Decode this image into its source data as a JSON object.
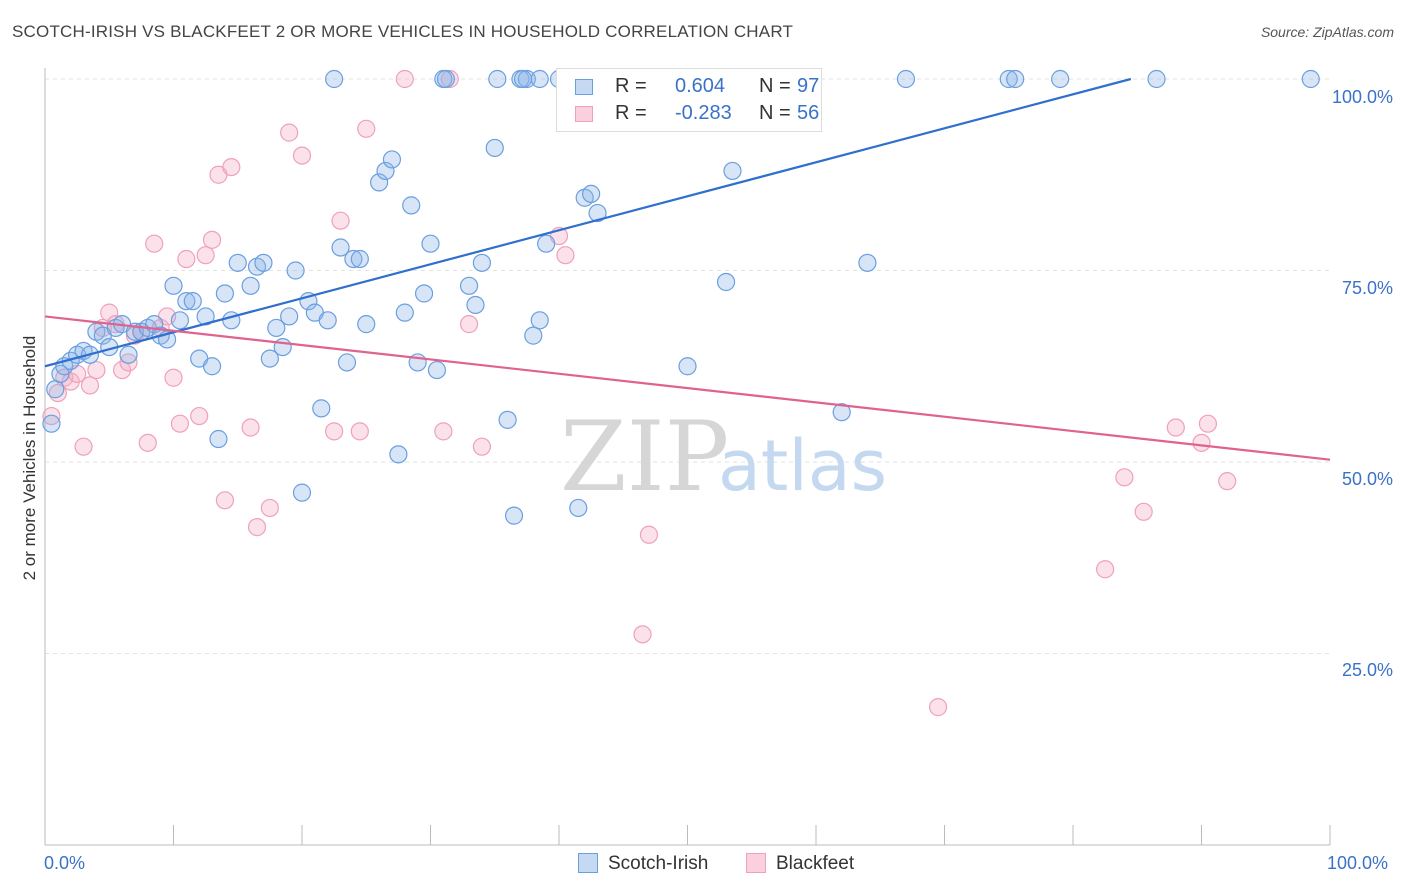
{
  "header": {
    "title": "SCOTCH-IRISH VS BLACKFEET 2 OR MORE VEHICLES IN HOUSEHOLD CORRELATION CHART",
    "source": "Source: ZipAtlas.com"
  },
  "watermark": {
    "zip": "ZIP",
    "atlas": "atlas"
  },
  "legend": {
    "series1": {
      "r_label": "R =",
      "r_value": "0.604",
      "n_label": "N =",
      "n_value": "97"
    },
    "series2": {
      "r_label": "R =",
      "r_value": "-0.283",
      "n_label": "N =",
      "n_value": "56"
    }
  },
  "chart_data": {
    "type": "scatter",
    "title": "SCOTCH-IRISH VS BLACKFEET 2 OR MORE VEHICLES IN HOUSEHOLD CORRELATION CHART",
    "xlabel": "",
    "ylabel": "2 or more Vehicles in Household",
    "xlim": [
      0,
      100
    ],
    "ylim": [
      0,
      100
    ],
    "x_tick_labels": [
      "0.0%",
      "100.0%"
    ],
    "y_ticks": [
      25,
      50,
      75,
      100
    ],
    "y_tick_labels": [
      "25.0%",
      "50.0%",
      "75.0%",
      "100.0%"
    ],
    "grid": true,
    "legend_position": "bottom",
    "colors": {
      "Scotch-Irish": "#6a9fe0",
      "Blackfeet": "#f0a0bb",
      "blue_line": "#2f6fcd",
      "pink_line": "#e0628e"
    },
    "series": [
      {
        "name": "Scotch-Irish",
        "trend": {
          "x": [
            0,
            84.5
          ],
          "y": [
            62.5,
            100
          ]
        },
        "points": [
          [
            0.5,
            55
          ],
          [
            0.8,
            59.5
          ],
          [
            1.2,
            61.5
          ],
          [
            1.5,
            62.5
          ],
          [
            2,
            63.2
          ],
          [
            2.5,
            64
          ],
          [
            3,
            64.5
          ],
          [
            3.5,
            64
          ],
          [
            4,
            67
          ],
          [
            4.5,
            66.5
          ],
          [
            5,
            65
          ],
          [
            5.5,
            67.5
          ],
          [
            6,
            68
          ],
          [
            6.5,
            64
          ],
          [
            7,
            67
          ],
          [
            7.5,
            67
          ],
          [
            8,
            67.5
          ],
          [
            8.5,
            68
          ],
          [
            9,
            66.5
          ],
          [
            9.5,
            66
          ],
          [
            10,
            73
          ],
          [
            10.5,
            68.5
          ],
          [
            11,
            71
          ],
          [
            11.5,
            71
          ],
          [
            12,
            63.5
          ],
          [
            12.5,
            69
          ],
          [
            13,
            62.5
          ],
          [
            13.5,
            53
          ],
          [
            14,
            72
          ],
          [
            14.5,
            68.5
          ],
          [
            15,
            76
          ],
          [
            16,
            73
          ],
          [
            16.5,
            75.5
          ],
          [
            17,
            76
          ],
          [
            17.5,
            63.5
          ],
          [
            18,
            67.5
          ],
          [
            18.5,
            65
          ],
          [
            19,
            69
          ],
          [
            19.5,
            75
          ],
          [
            20,
            46
          ],
          [
            20.5,
            71
          ],
          [
            21,
            69.5
          ],
          [
            21.5,
            57
          ],
          [
            22,
            68.5
          ],
          [
            23,
            78
          ],
          [
            23.5,
            63
          ],
          [
            24,
            76.5
          ],
          [
            24.5,
            76.5
          ],
          [
            25,
            68
          ],
          [
            26,
            86.5
          ],
          [
            26.5,
            88
          ],
          [
            27,
            89.5
          ],
          [
            27.5,
            51
          ],
          [
            28,
            69.5
          ],
          [
            28.5,
            83.5
          ],
          [
            29,
            63
          ],
          [
            29.5,
            72
          ],
          [
            30,
            78.5
          ],
          [
            30.5,
            62
          ],
          [
            31,
            100
          ],
          [
            33,
            73
          ],
          [
            33.5,
            70.5
          ],
          [
            34,
            76
          ],
          [
            35,
            91
          ],
          [
            36,
            55.5
          ],
          [
            36.5,
            43
          ],
          [
            37,
            100
          ],
          [
            37.5,
            100
          ],
          [
            38,
            66.5
          ],
          [
            38.5,
            68.5
          ],
          [
            39,
            78.5
          ],
          [
            40,
            100
          ],
          [
            41.5,
            44
          ],
          [
            42,
            84.5
          ],
          [
            42.5,
            85
          ],
          [
            43,
            82.5
          ],
          [
            50,
            62.5
          ],
          [
            53,
            73.5
          ],
          [
            53.5,
            88
          ],
          [
            56,
            100
          ],
          [
            62,
            56.5
          ],
          [
            64,
            76
          ],
          [
            67,
            100
          ],
          [
            75,
            100
          ],
          [
            75.5,
            100
          ],
          [
            79,
            100
          ],
          [
            86.5,
            100
          ],
          [
            98.5,
            100
          ],
          [
            22.5,
            100
          ],
          [
            31.2,
            100
          ],
          [
            35.2,
            100
          ],
          [
            37.2,
            100
          ],
          [
            38.5,
            100
          ],
          [
            40.5,
            100
          ],
          [
            44,
            100
          ],
          [
            45,
            100
          ],
          [
            49,
            100
          ]
        ]
      },
      {
        "name": "Blackfeet",
        "trend": {
          "x": [
            0,
            100
          ],
          "y": [
            69,
            50.3
          ]
        },
        "points": [
          [
            0.5,
            56
          ],
          [
            1,
            59
          ],
          [
            1.5,
            61
          ],
          [
            2,
            60.5
          ],
          [
            2.5,
            61.5
          ],
          [
            3,
            52
          ],
          [
            3.5,
            60
          ],
          [
            4,
            62
          ],
          [
            4.5,
            67.5
          ],
          [
            5,
            69.5
          ],
          [
            5.5,
            68
          ],
          [
            6,
            62
          ],
          [
            6.5,
            63
          ],
          [
            7,
            66.5
          ],
          [
            7.5,
            67
          ],
          [
            8,
            52.5
          ],
          [
            8.5,
            78.5
          ],
          [
            9,
            67.5
          ],
          [
            9.5,
            69
          ],
          [
            10,
            61
          ],
          [
            10.5,
            55
          ],
          [
            11,
            76.5
          ],
          [
            12,
            56
          ],
          [
            12.5,
            77
          ],
          [
            13,
            79
          ],
          [
            13.5,
            87.5
          ],
          [
            14,
            45
          ],
          [
            14.5,
            88.5
          ],
          [
            16,
            54.5
          ],
          [
            16.5,
            41.5
          ],
          [
            17.5,
            44
          ],
          [
            19,
            93
          ],
          [
            20,
            90
          ],
          [
            22.5,
            54
          ],
          [
            23,
            81.5
          ],
          [
            24.5,
            54
          ],
          [
            25,
            93.5
          ],
          [
            28,
            100
          ],
          [
            31,
            54
          ],
          [
            31.5,
            100
          ],
          [
            33,
            68
          ],
          [
            34,
            52
          ],
          [
            40,
            79.5
          ],
          [
            40.5,
            77
          ],
          [
            46.5,
            27.5
          ],
          [
            47,
            40.5
          ],
          [
            69.5,
            18
          ],
          [
            82.5,
            36
          ],
          [
            84,
            48
          ],
          [
            85.5,
            43.5
          ],
          [
            88,
            54.5
          ],
          [
            90,
            52.5
          ],
          [
            90.5,
            55
          ],
          [
            92,
            47.5
          ],
          [
            42,
            100
          ],
          [
            55,
            100
          ]
        ]
      }
    ]
  },
  "bottom_legend": {
    "item1": "Scotch-Irish",
    "item2": "Blackfeet"
  }
}
